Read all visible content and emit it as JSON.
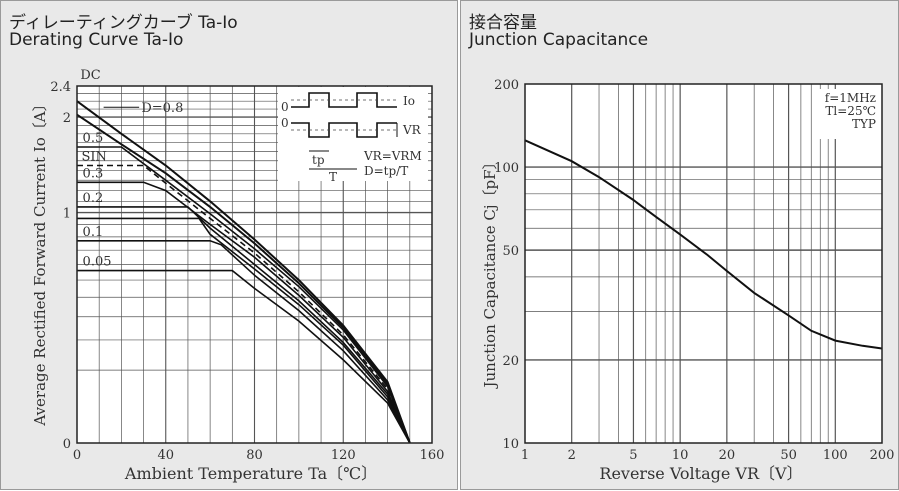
{
  "panels": {
    "left": {
      "title_jp": "ディレーティングカーブ Ta-Io",
      "title_en": "Derating Curve Ta-Io"
    },
    "right": {
      "title_jp": "接合容量",
      "title_en": "Junction Capacitance"
    }
  },
  "chart_data": [
    {
      "type": "line",
      "xlabel": "Ambient Temperature  Ta〔℃〕",
      "ylabel": "Average Rectified Forward Current  Io〔A〕",
      "xlim": [
        0,
        160
      ],
      "ylim": [
        0,
        2.4
      ],
      "y_scale": "sqrt",
      "x_ticks": [
        "0",
        "40",
        "80",
        "120",
        "160"
      ],
      "y_ticks": [
        {
          "v": 0,
          "t": "0"
        },
        {
          "v": 1,
          "t": "1"
        },
        {
          "v": 2,
          "t": "2"
        },
        {
          "v": 2.4,
          "t": "2.4"
        }
      ],
      "grid": true,
      "series": [
        {
          "name": "DC",
          "dashed": false,
          "x": [
            0,
            20,
            40,
            60,
            80,
            100,
            120,
            140,
            150
          ],
          "y": [
            2.2,
            1.8,
            1.45,
            1.1,
            0.78,
            0.5,
            0.26,
            0.07,
            0
          ]
        },
        {
          "name": "D=0.8",
          "dashed": false,
          "x": [
            0,
            20,
            40,
            60,
            80,
            100,
            120,
            140,
            150
          ],
          "y": [
            2.03,
            1.68,
            1.37,
            1.05,
            0.75,
            0.48,
            0.25,
            0.065,
            0
          ]
        },
        {
          "name": "0.5",
          "dashed": false,
          "x": [
            0,
            20,
            40,
            60,
            80,
            100,
            120,
            140,
            150
          ],
          "y": [
            1.65,
            1.65,
            1.3,
            0.99,
            0.71,
            0.46,
            0.24,
            0.06,
            0
          ]
        },
        {
          "name": "SIN",
          "dashed": true,
          "x": [
            0,
            20,
            30,
            40,
            60,
            80,
            100,
            120,
            140,
            150
          ],
          "y": [
            1.45,
            1.45,
            1.45,
            1.27,
            0.95,
            0.68,
            0.43,
            0.22,
            0.055,
            0
          ]
        },
        {
          "name": "0.3",
          "dashed": false,
          "x": [
            0,
            20,
            30,
            40,
            60,
            80,
            100,
            120,
            140,
            150
          ],
          "y": [
            1.28,
            1.28,
            1.28,
            1.2,
            0.9,
            0.65,
            0.41,
            0.21,
            0.05,
            0
          ]
        },
        {
          "name": "0.2",
          "dashed": false,
          "x": [
            0,
            20,
            40,
            50,
            60,
            80,
            100,
            120,
            140,
            150
          ],
          "y": [
            1.05,
            1.05,
            1.05,
            1.05,
            0.87,
            0.6,
            0.38,
            0.19,
            0.045,
            0
          ]
        },
        {
          "name": "",
          "dashed": false,
          "x": [
            0,
            20,
            40,
            55,
            60,
            80,
            100,
            120,
            140,
            150
          ],
          "y": [
            0.95,
            0.95,
            0.95,
            0.95,
            0.82,
            0.57,
            0.36,
            0.18,
            0.04,
            0
          ]
        },
        {
          "name": "0.1",
          "dashed": false,
          "x": [
            0,
            20,
            40,
            60,
            65,
            80,
            100,
            120,
            140,
            150
          ],
          "y": [
            0.77,
            0.77,
            0.77,
            0.77,
            0.74,
            0.53,
            0.33,
            0.16,
            0.035,
            0
          ]
        },
        {
          "name": "0.05",
          "dashed": false,
          "x": [
            0,
            20,
            40,
            60,
            70,
            80,
            100,
            120,
            140,
            150
          ],
          "y": [
            0.56,
            0.56,
            0.56,
            0.56,
            0.56,
            0.45,
            0.28,
            0.13,
            0.03,
            0
          ]
        }
      ],
      "inset": {
        "lines": [
          {
            "key": "io",
            "text": "Io"
          },
          {
            "key": "zero_top",
            "text": "0"
          },
          {
            "key": "zero_bottom",
            "text": "0"
          },
          {
            "key": "vr",
            "text": "VR"
          },
          {
            "key": "vr_eq",
            "text": "VR=VRM"
          },
          {
            "key": "d_eq",
            "text": "D=tp/T"
          },
          {
            "key": "tp",
            "text": "tp"
          },
          {
            "key": "t",
            "text": "T"
          }
        ]
      }
    },
    {
      "type": "line",
      "xlabel": "Reverse Voltage  VR〔V〕",
      "ylabel": "Junction Capacitance  Cj〔pF〕",
      "x_scale": "log",
      "y_scale": "log",
      "xlim": [
        1,
        200
      ],
      "ylim": [
        10,
        200
      ],
      "x_ticks": [
        "1",
        "2",
        "5",
        "10",
        "20",
        "50",
        "100",
        "200"
      ],
      "y_ticks": [
        "10",
        "20",
        "50",
        "100",
        "200"
      ],
      "grid": true,
      "annotations": [
        "f=1MHz",
        "Tl=25℃",
        "TYP"
      ],
      "series": [
        {
          "x": [
            1,
            2,
            3,
            5,
            7,
            10,
            15,
            20,
            30,
            50,
            70,
            100,
            150,
            200
          ],
          "y": [
            125,
            105,
            92,
            76,
            66,
            57,
            48,
            42,
            35,
            29,
            25.5,
            23.5,
            22.5,
            22
          ]
        }
      ]
    }
  ]
}
